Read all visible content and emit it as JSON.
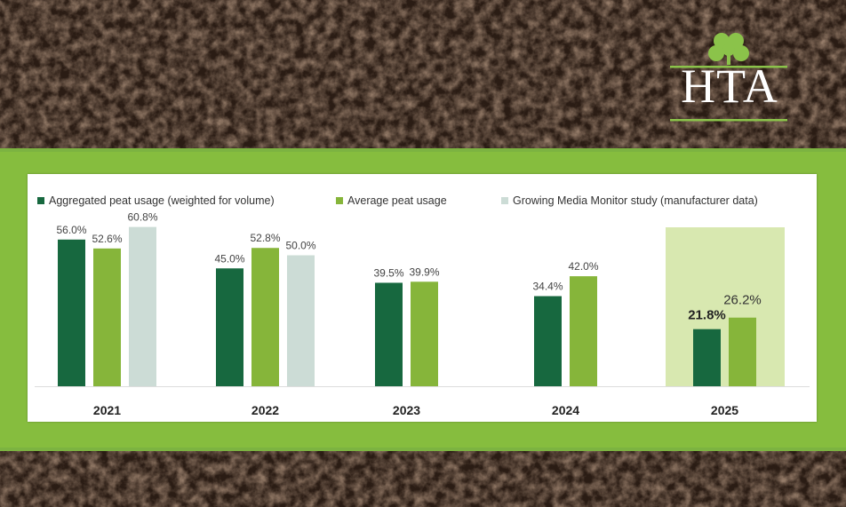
{
  "logo": {
    "text": "HTA",
    "icon": "shamrock-icon"
  },
  "colors": {
    "aggregated": "#17683f",
    "average": "#86b53a",
    "gmm": "#ccdcd6",
    "highlight": "#d8e8b0",
    "band": "#7cb341"
  },
  "chart_data": {
    "type": "bar",
    "categories": [
      "2021",
      "2022",
      "2023",
      "2024",
      "2025"
    ],
    "series": [
      {
        "name": "Aggregated peat usage (weighted for volume)",
        "values": [
          56.0,
          45.0,
          39.5,
          34.4,
          21.8
        ],
        "labels": [
          "56.0%",
          "45.0%",
          "39.5%",
          "34.4%",
          "21.8%"
        ]
      },
      {
        "name": "Average peat usage",
        "values": [
          52.6,
          52.8,
          39.9,
          42.0,
          26.2
        ],
        "labels": [
          "52.6%",
          "52.8%",
          "39.9%",
          "42.0%",
          "26.2%"
        ]
      },
      {
        "name": "Growing Media Monitor study (manufacturer data)",
        "values": [
          60.8,
          50.0,
          null,
          null,
          null
        ],
        "labels": [
          "60.8%",
          "50.0%",
          null,
          null,
          null
        ]
      }
    ],
    "highlight_category": "2025",
    "legend": "top",
    "grid": false
  }
}
